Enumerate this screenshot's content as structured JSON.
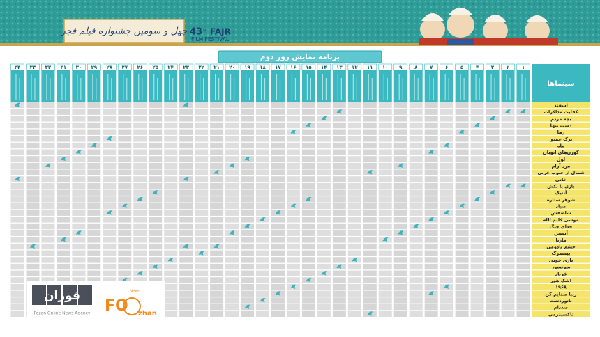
{
  "header": {
    "festival_number": "43",
    "festival_suffix": "rd",
    "festival_name": "FAJR",
    "festival_sub": "FILM FESTIVAL",
    "festival_persian": "چهل و سومین جشنواره فیلم فجر"
  },
  "title": "برنامه نمایش روز دوم",
  "table": {
    "corner": "سینماها",
    "columns": [
      "۱",
      "۲",
      "۳",
      "۴",
      "۵",
      "۶",
      "۷",
      "۸",
      "۹",
      "۱۰",
      "۱۱",
      "۱۲",
      "۱۳",
      "۱۴",
      "۱۵",
      "۱۶",
      "۱۷",
      "۱۸",
      "۱۹",
      "۲۰",
      "۲۱",
      "۲۲",
      "۲۳",
      "۲۴",
      "۲۵",
      "۲۶",
      "۲۷",
      "۲۸",
      "۲۹",
      "۳۰",
      "۳۱",
      "۳۲",
      "۳۳",
      "۳۴"
    ],
    "rows": [
      {
        "name": "اسفند",
        "screenings": [
          "۳۴",
          "۲۳"
        ]
      },
      {
        "name": "کفایت مذاکرات",
        "screenings": [
          "۱۳",
          "۲",
          "۱"
        ]
      },
      {
        "name": "بچه مردم",
        "screenings": [
          "۳",
          "۱۴"
        ]
      },
      {
        "name": "دست تنها",
        "screenings": [
          "۱۵",
          "۴"
        ]
      },
      {
        "name": "رها",
        "screenings": [
          "۱۶",
          "۵"
        ]
      },
      {
        "name": "ترک عمیق",
        "screenings": [
          "۲۸"
        ]
      },
      {
        "name": "ماه",
        "screenings": [
          "۶",
          "۲۹"
        ]
      },
      {
        "name": "گوزن‌های اتوبان",
        "screenings": [
          "۷",
          "۳۰"
        ]
      },
      {
        "name": "لول",
        "screenings": [
          "۱۹",
          "۳۱"
        ]
      },
      {
        "name": "مرد آرام",
        "screenings": [
          "۹",
          "۳۲",
          "۲۰"
        ]
      },
      {
        "name": "شمال از جنوب غربی",
        "screenings": [
          "۱۱",
          "۲۱"
        ]
      },
      {
        "name": "خاتی",
        "screenings": [
          "۳۴",
          "۲۳"
        ]
      },
      {
        "name": "بازی یا بکش",
        "screenings": [
          "۲",
          "۱"
        ]
      },
      {
        "name": "آنتیک",
        "screenings": [
          "۲۵",
          "۳"
        ]
      },
      {
        "name": "شوهر ستاره",
        "screenings": [
          "۲۶",
          "۴",
          "۱۵"
        ]
      },
      {
        "name": "صیاد",
        "screenings": [
          "۱۶",
          "۵",
          "۲۷"
        ]
      },
      {
        "name": "شاه‌نقش",
        "screenings": [
          "۲۸",
          "۶",
          "۱۷"
        ]
      },
      {
        "name": "موسی کلیم الله",
        "screenings": [
          "۱۸",
          "۷"
        ]
      },
      {
        "name": "خدای جنگ",
        "screenings": [
          "۱۹",
          "۸"
        ]
      },
      {
        "name": "آبستن",
        "screenings": [
          "۹",
          "۲۰",
          "۳۰"
        ]
      },
      {
        "name": "ماریا",
        "screenings": [
          "۳۱",
          "۱۰"
        ]
      },
      {
        "name": "چشم بادومی",
        "screenings": [
          "۳۳",
          "۲۳",
          "۲۱"
        ]
      },
      {
        "name": "پیشمرگ",
        "screenings": [
          "۲۲"
        ]
      },
      {
        "name": "بازی خونی",
        "screenings": [
          "۱۲",
          "۲۴"
        ]
      },
      {
        "name": "سونسوز",
        "screenings": [
          "۱۳",
          "۲۵"
        ]
      },
      {
        "name": "فریاد",
        "screenings": [
          "۱۴",
          "۲۶"
        ]
      },
      {
        "name": "اشک هور",
        "screenings": [
          "۱۵",
          "۲۷"
        ]
      },
      {
        "name": "۱۹۶۸",
        "screenings": [
          "۱۶",
          "۶"
        ]
      },
      {
        "name": "زیبا صدایم کن",
        "screenings": [
          "۱۷",
          "۷"
        ]
      },
      {
        "name": "ناتوردشت",
        "screenings": [
          "۱۸"
        ]
      },
      {
        "name": "صددام",
        "screenings": [
          "۱۹"
        ]
      },
      {
        "name": "تاکسیدرمی",
        "screenings": [
          "۱۱"
        ]
      }
    ]
  },
  "watermark": {
    "agency_persian": "فوزان",
    "agency_english": "Fozan Online News Agency",
    "logo_main": "FO",
    "logo_tail": "zhan",
    "logo_news": "News"
  }
}
